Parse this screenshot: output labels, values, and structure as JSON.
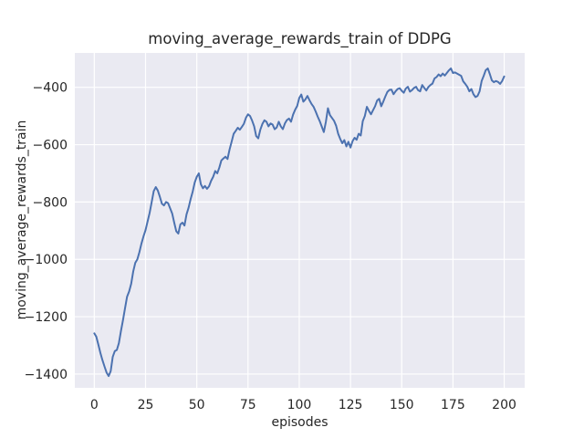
{
  "chart_data": {
    "type": "line",
    "title": "moving_average_rewards_train of DDPG",
    "xlabel": "episodes",
    "ylabel": "moving_average_rewards_train",
    "legend_position": "none",
    "grid": true,
    "xlim": [
      -9.5,
      210
    ],
    "ylim": [
      -1448,
      -280
    ],
    "xticks": [
      0,
      25,
      50,
      75,
      100,
      125,
      150,
      175,
      200
    ],
    "xtick_labels": [
      "0",
      "25",
      "50",
      "75",
      "100",
      "125",
      "150",
      "175",
      "200"
    ],
    "yticks": [
      -400,
      -600,
      -800,
      -1000,
      -1200,
      -1400
    ],
    "ytick_labels": [
      "−400",
      "−600",
      "−800",
      "−1000",
      "−1200",
      "−1400"
    ],
    "colors": {
      "line": "#4c72b0",
      "plot_background": "#eaeaf2",
      "gridline": "#ffffff",
      "text": "#262626"
    },
    "series": [
      {
        "name": "moving_average_rewards_train",
        "x_start": 0,
        "x_step": 1,
        "values": [
          -1258,
          -1270,
          -1298,
          -1327,
          -1352,
          -1374,
          -1395,
          -1407,
          -1390,
          -1340,
          -1320,
          -1316,
          -1292,
          -1250,
          -1212,
          -1170,
          -1130,
          -1112,
          -1085,
          -1042,
          -1012,
          -1000,
          -975,
          -945,
          -920,
          -898,
          -868,
          -838,
          -800,
          -762,
          -748,
          -760,
          -782,
          -806,
          -812,
          -800,
          -804,
          -822,
          -840,
          -872,
          -902,
          -910,
          -878,
          -872,
          -882,
          -843,
          -820,
          -790,
          -764,
          -732,
          -712,
          -700,
          -738,
          -752,
          -744,
          -754,
          -745,
          -726,
          -712,
          -692,
          -700,
          -680,
          -655,
          -648,
          -642,
          -650,
          -617,
          -590,
          -562,
          -552,
          -541,
          -548,
          -538,
          -527,
          -506,
          -494,
          -500,
          -516,
          -536,
          -570,
          -578,
          -548,
          -528,
          -515,
          -520,
          -536,
          -526,
          -530,
          -546,
          -540,
          -520,
          -536,
          -546,
          -526,
          -514,
          -509,
          -520,
          -495,
          -478,
          -465,
          -437,
          -425,
          -450,
          -442,
          -430,
          -445,
          -458,
          -468,
          -484,
          -502,
          -518,
          -537,
          -556,
          -520,
          -473,
          -497,
          -507,
          -517,
          -534,
          -562,
          -580,
          -595,
          -584,
          -606,
          -590,
          -610,
          -588,
          -576,
          -583,
          -562,
          -568,
          -518,
          -500,
          -468,
          -482,
          -494,
          -480,
          -466,
          -446,
          -440,
          -466,
          -450,
          -432,
          -416,
          -409,
          -408,
          -424,
          -414,
          -406,
          -403,
          -412,
          -419,
          -404,
          -398,
          -415,
          -410,
          -402,
          -398,
          -410,
          -414,
          -392,
          -402,
          -411,
          -399,
          -392,
          -387,
          -369,
          -364,
          -355,
          -361,
          -352,
          -359,
          -350,
          -341,
          -334,
          -350,
          -348,
          -352,
          -356,
          -360,
          -379,
          -388,
          -398,
          -414,
          -406,
          -424,
          -434,
          -430,
          -414,
          -378,
          -360,
          -340,
          -334,
          -354,
          -376,
          -382,
          -378,
          -381,
          -388,
          -378,
          -362
        ]
      }
    ]
  }
}
